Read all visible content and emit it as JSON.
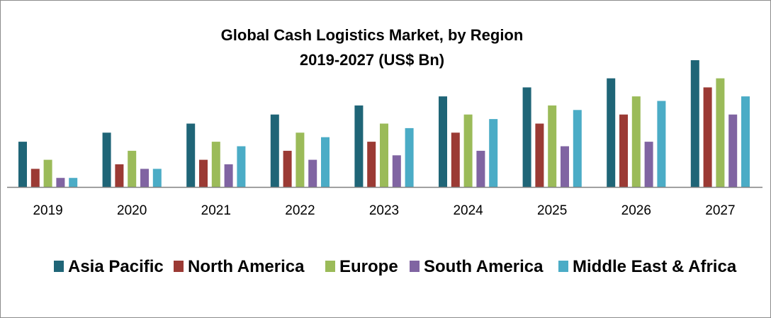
{
  "chart_data": {
    "type": "bar",
    "title": "Global Cash Logistics Market, by Region",
    "subtitle": "2019-2027 (US$ Bn)",
    "xlabel": "",
    "ylabel": "",
    "categories": [
      "2019",
      "2020",
      "2021",
      "2022",
      "2023",
      "2024",
      "2025",
      "2026",
      "2027"
    ],
    "ylim": [
      0,
      14
    ],
    "grid": false,
    "y_axis_visible": false,
    "legend_position": "bottom",
    "series": [
      {
        "name": "Asia Pacific",
        "color": "#1f6577",
        "values": [
          5,
          6,
          7,
          8,
          9,
          10,
          11,
          12,
          14
        ]
      },
      {
        "name": "North America",
        "color": "#9b3a34",
        "values": [
          2,
          2.5,
          3,
          4,
          5,
          6,
          7,
          8,
          11
        ]
      },
      {
        "name": "Europe",
        "color": "#9bbb59",
        "values": [
          3,
          4,
          5,
          6,
          7,
          8,
          9,
          10,
          12
        ]
      },
      {
        "name": "South America",
        "color": "#8064a2",
        "values": [
          1,
          2,
          2.5,
          3,
          3.5,
          4,
          4.5,
          5,
          8
        ]
      },
      {
        "name": "Middle East & Africa",
        "color": "#4bacc6",
        "values": [
          1,
          2,
          4.5,
          5.5,
          6.5,
          7.5,
          8.5,
          9.5,
          10
        ]
      }
    ]
  }
}
